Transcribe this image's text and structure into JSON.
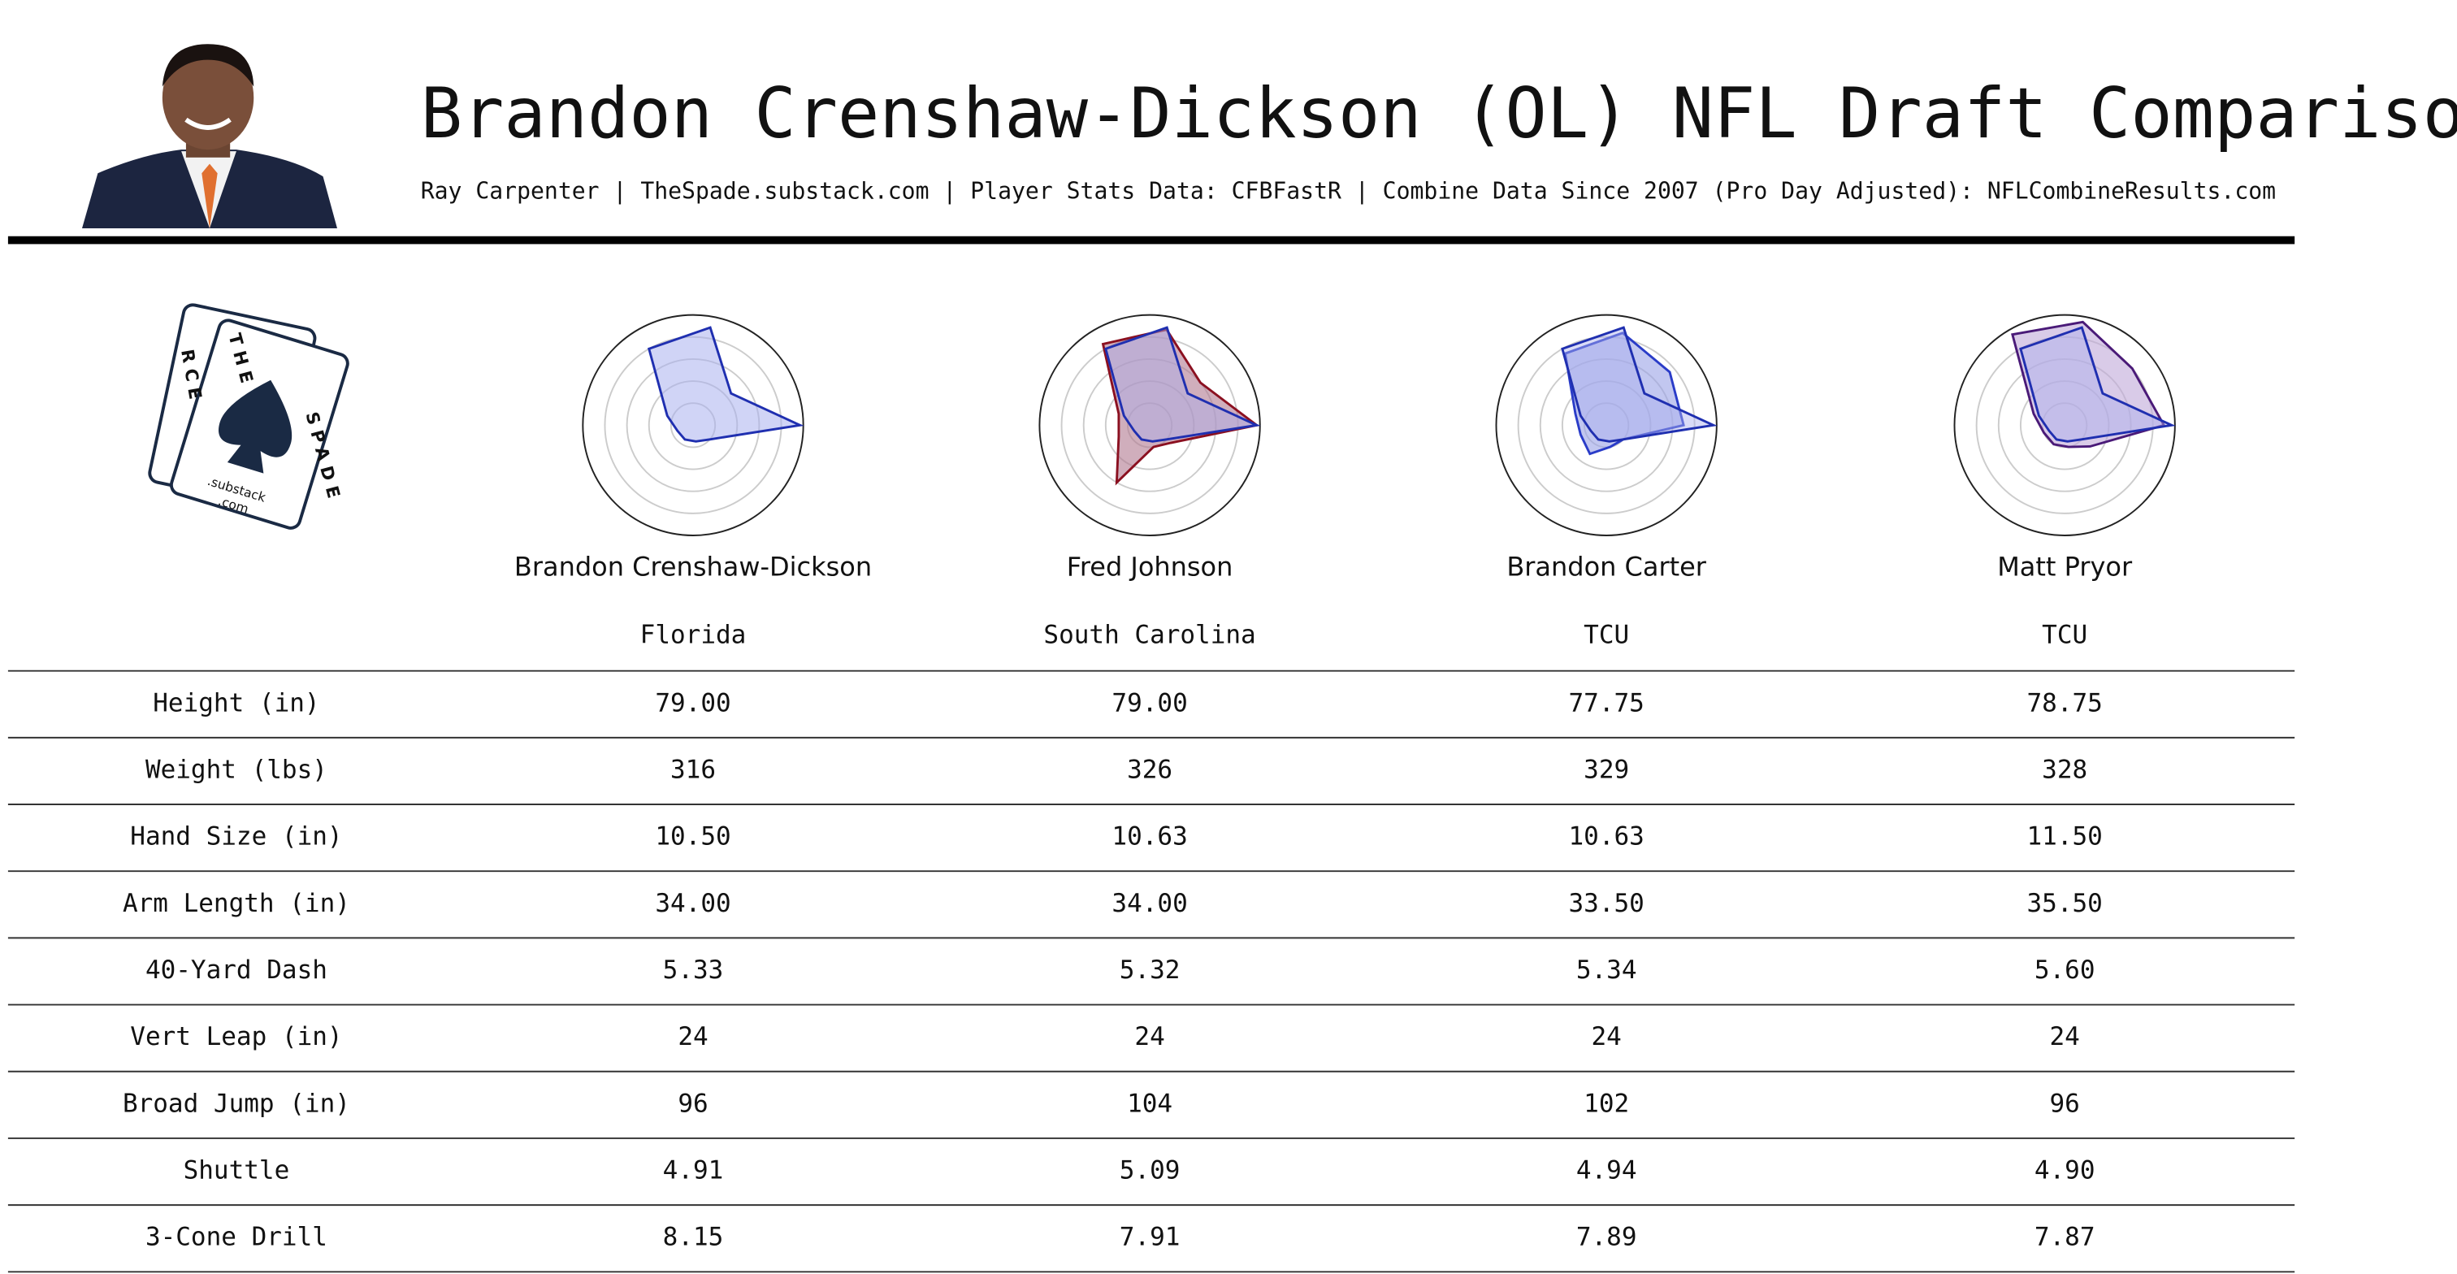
{
  "header": {
    "title": "Brandon Crenshaw-Dickson (OL) NFL Draft Comparison",
    "subtitle": "Ray Carpenter | TheSpade.substack.com | Player Stats Data: CFBFastR | Combine Data Since 2007 (Pro Day Adjusted): NFLCombineResults.com"
  },
  "logo": {
    "left": "RCE",
    "top": "THE",
    "side": "SPADE",
    "domain": ".substack",
    "tld": ".com"
  },
  "radar_rings": [
    20,
    40,
    60,
    80,
    100
  ],
  "players": [
    {
      "name": "Brandon Crenshaw-Dickson",
      "school": "Florida",
      "color": "#1f2fb0",
      "fill": "#aab0ee",
      "radar": [
        97,
        45,
        90,
        80,
        25,
        15,
        15,
        15,
        20
      ]
    },
    {
      "name": "Fred Johnson",
      "school": "South Carolina",
      "color": "#8b1020",
      "fill": "#b07890",
      "radar": [
        97,
        60,
        88,
        85,
        30,
        30,
        60,
        20,
        25
      ]
    },
    {
      "name": "Brandon Carter",
      "school": "TCU",
      "color": "#2a3cc8",
      "fill": "#9aa2e6",
      "radar": [
        70,
        75,
        85,
        75,
        30,
        25,
        30,
        20,
        20
      ]
    },
    {
      "name": "Matt Pryor",
      "school": "TCU",
      "color": "#4a1a78",
      "fill": "#c0a8d8",
      "radar": [
        90,
        80,
        95,
        95,
        30,
        20,
        20,
        20,
        30
      ]
    }
  ],
  "rows": [
    {
      "label": "Height (in)",
      "values": [
        "79.00",
        "79.00",
        "77.75",
        "78.75"
      ]
    },
    {
      "label": "Weight (lbs)",
      "values": [
        "316",
        "326",
        "329",
        "328"
      ]
    },
    {
      "label": "Hand Size (in)",
      "values": [
        "10.50",
        "10.63",
        "10.63",
        "11.50"
      ]
    },
    {
      "label": "Arm Length (in)",
      "values": [
        "34.00",
        "34.00",
        "33.50",
        "35.50"
      ]
    },
    {
      "label": "40-Yard Dash",
      "values": [
        "5.33",
        "5.32",
        "5.34",
        "5.60"
      ]
    },
    {
      "label": "Vert Leap (in)",
      "values": [
        "24",
        "24",
        "24",
        "24"
      ]
    },
    {
      "label": "Broad Jump (in)",
      "values": [
        "96",
        "104",
        "102",
        "96"
      ]
    },
    {
      "label": "Shuttle",
      "values": [
        "4.91",
        "5.09",
        "4.94",
        "4.90"
      ]
    },
    {
      "label": "3-Cone Drill",
      "values": [
        "8.15",
        "7.91",
        "7.89",
        "7.87"
      ]
    }
  ]
}
